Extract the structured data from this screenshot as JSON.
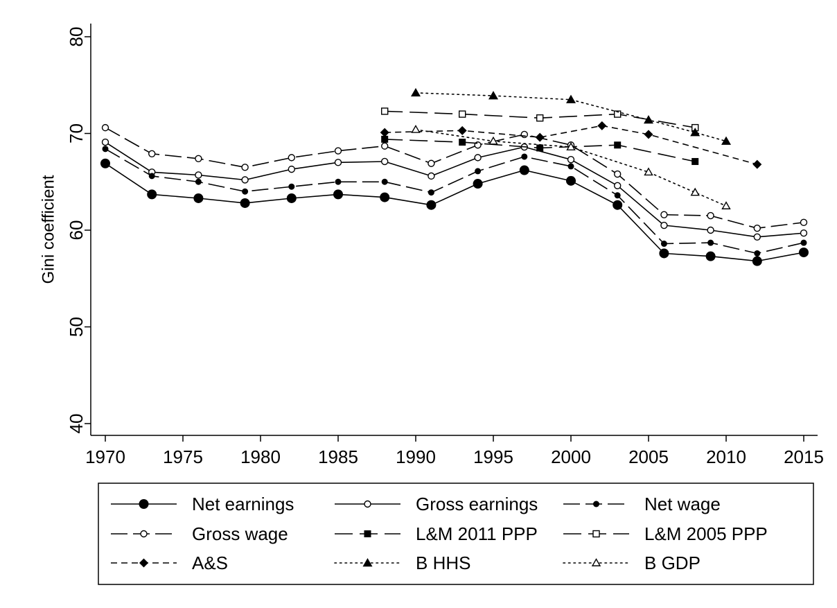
{
  "chart_data": {
    "type": "line",
    "title": "",
    "xlabel": "",
    "ylabel": "Gini coefficient",
    "xlim": [
      1970,
      2015
    ],
    "ylim": [
      40,
      80
    ],
    "xticks": [
      1970,
      1975,
      1980,
      1985,
      1990,
      1995,
      2000,
      2005,
      2010,
      2015
    ],
    "yticks": [
      40,
      50,
      60,
      70,
      80
    ],
    "grid": false,
    "legend_position": "bottom",
    "series": [
      {
        "name": "Net earnings",
        "dash": "solid",
        "marker": "circle-filled-large",
        "color": "#000000",
        "x": [
          1970,
          1973,
          1976,
          1979,
          1982,
          1985,
          1988,
          1991,
          1994,
          1997,
          2000,
          2003,
          2006,
          2009,
          2012,
          2015
        ],
        "y": [
          66.9,
          63.7,
          63.3,
          62.8,
          63.3,
          63.7,
          63.4,
          62.6,
          64.8,
          66.2,
          65.1,
          62.6,
          57.6,
          57.3,
          56.8,
          57.7
        ]
      },
      {
        "name": "Gross earnings",
        "dash": "solid",
        "marker": "circle-open",
        "color": "#000000",
        "x": [
          1970,
          1973,
          1976,
          1979,
          1982,
          1985,
          1988,
          1991,
          1994,
          1997,
          2000,
          2003,
          2006,
          2009,
          2012,
          2015
        ],
        "y": [
          69.1,
          66.0,
          65.7,
          65.2,
          66.3,
          67.0,
          67.1,
          65.6,
          67.5,
          68.6,
          67.3,
          64.6,
          60.5,
          60.0,
          59.3,
          59.7
        ]
      },
      {
        "name": "Net wage",
        "dash": "longdash",
        "marker": "circle-filled-small",
        "color": "#000000",
        "x": [
          1970,
          1973,
          1976,
          1979,
          1982,
          1985,
          1988,
          1991,
          1994,
          1997,
          2000,
          2003,
          2006,
          2009,
          2012,
          2015
        ],
        "y": [
          68.4,
          65.6,
          65.0,
          64.0,
          64.5,
          65.0,
          65.0,
          63.9,
          66.1,
          67.6,
          66.6,
          63.6,
          58.6,
          58.7,
          57.6,
          58.7
        ]
      },
      {
        "name": "Gross wage",
        "dash": "longdash",
        "marker": "circle-open",
        "color": "#000000",
        "x": [
          1970,
          1973,
          1976,
          1979,
          1982,
          1985,
          1988,
          1991,
          1994,
          1997,
          2000,
          2003,
          2006,
          2009,
          2012,
          2015
        ],
        "y": [
          70.6,
          67.9,
          67.4,
          66.5,
          67.5,
          68.2,
          68.7,
          66.9,
          68.8,
          69.9,
          68.8,
          65.8,
          61.6,
          61.5,
          60.2,
          60.8
        ]
      },
      {
        "name": "L&M 2011 PPP",
        "dash": "medlongdash",
        "marker": "square-filled",
        "color": "#000000",
        "x": [
          1988,
          1993,
          1998,
          2003,
          2008
        ],
        "y": [
          69.4,
          69.1,
          68.5,
          68.8,
          67.1
        ]
      },
      {
        "name": "L&M 2005 PPP",
        "dash": "medlongdash",
        "marker": "square-open",
        "color": "#000000",
        "x": [
          1988,
          1993,
          1998,
          2003,
          2008
        ],
        "y": [
          72.3,
          72.0,
          71.6,
          72.0,
          70.6
        ]
      },
      {
        "name": "A&S",
        "dash": "shortdash",
        "marker": "diamond-filled",
        "color": "#000000",
        "x": [
          1988,
          1993,
          1998,
          2002,
          2005,
          2012
        ],
        "y": [
          70.1,
          70.3,
          69.6,
          70.8,
          69.9,
          66.8
        ]
      },
      {
        "name": "B HHS",
        "dash": "dot",
        "marker": "triangle-filled",
        "color": "#000000",
        "x": [
          1990,
          1995,
          2000,
          2005,
          2008,
          2010
        ],
        "y": [
          74.2,
          73.9,
          73.5,
          71.4,
          70.1,
          69.2
        ]
      },
      {
        "name": "B GDP",
        "dash": "dot",
        "marker": "triangle-open",
        "color": "#000000",
        "x": [
          1990,
          1995,
          2000,
          2005,
          2008,
          2010
        ],
        "y": [
          70.4,
          69.2,
          68.6,
          66.0,
          63.9,
          62.5
        ]
      }
    ]
  }
}
